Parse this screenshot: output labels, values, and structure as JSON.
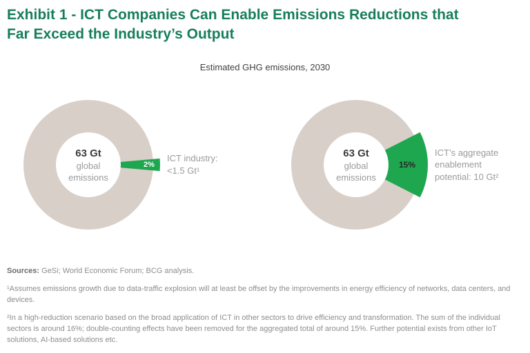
{
  "title": "Exhibit 1 - ICT Companies Can Enable Emissions Reductions that Far Exceed the Industry’s Output",
  "subtitle": "Estimated GHG emissions, 2030",
  "colors": {
    "title": "#177e5b",
    "accent_green": "#1fa750",
    "donut_ring": "#d8cfc8",
    "center_value_text": "#3c3c3c",
    "center_label_text": "#9a9a9a",
    "annotation_text": "#9a9a9a",
    "footnote_text": "#8d8d8d"
  },
  "chart_data": [
    {
      "type": "pie",
      "variant": "donut",
      "center_value": "63 Gt",
      "center_label": "global\nemissions",
      "slices": [
        {
          "name": "ICT industry emissions",
          "percent": 2,
          "color": "#1fa750",
          "label": "2%",
          "label_color": "#ffffff"
        },
        {
          "name": "rest of global emissions",
          "percent": 98,
          "color": "#d8cfc8",
          "label": "",
          "label_color": ""
        }
      ],
      "annotation": "ICT industry:\n<1.5 Gt¹"
    },
    {
      "type": "pie",
      "variant": "donut",
      "center_value": "63 Gt",
      "center_label": "global\nemissions",
      "slices": [
        {
          "name": "ICT enablement potential",
          "percent": 15,
          "color": "#1fa750",
          "label": "15%",
          "label_color": "#262626"
        },
        {
          "name": "rest of global emissions",
          "percent": 85,
          "color": "#d8cfc8",
          "label": "",
          "label_color": ""
        }
      ],
      "annotation": "ICT’s aggregate\nenablement\npotential: 10 Gt²"
    }
  ],
  "footer": {
    "sources_label": "Sources:",
    "sources_rest": " GeSi; World Economic Forum; BCG analysis.",
    "footnote1": "¹Assumes emissions growth due to data-traffic explosion will at least be offset by the improvements in energy efficiency of networks, data centers, and devices.",
    "footnote2": "²In a high-reduction scenario based on the broad application of ICT in other sectors to drive efficiency and transformation. The sum of the individual sectors is around 16%; double-counting effects have been removed for the aggregated total of around 15%. Further potential exists from other IoT solutions, AI-based solutions etc."
  }
}
